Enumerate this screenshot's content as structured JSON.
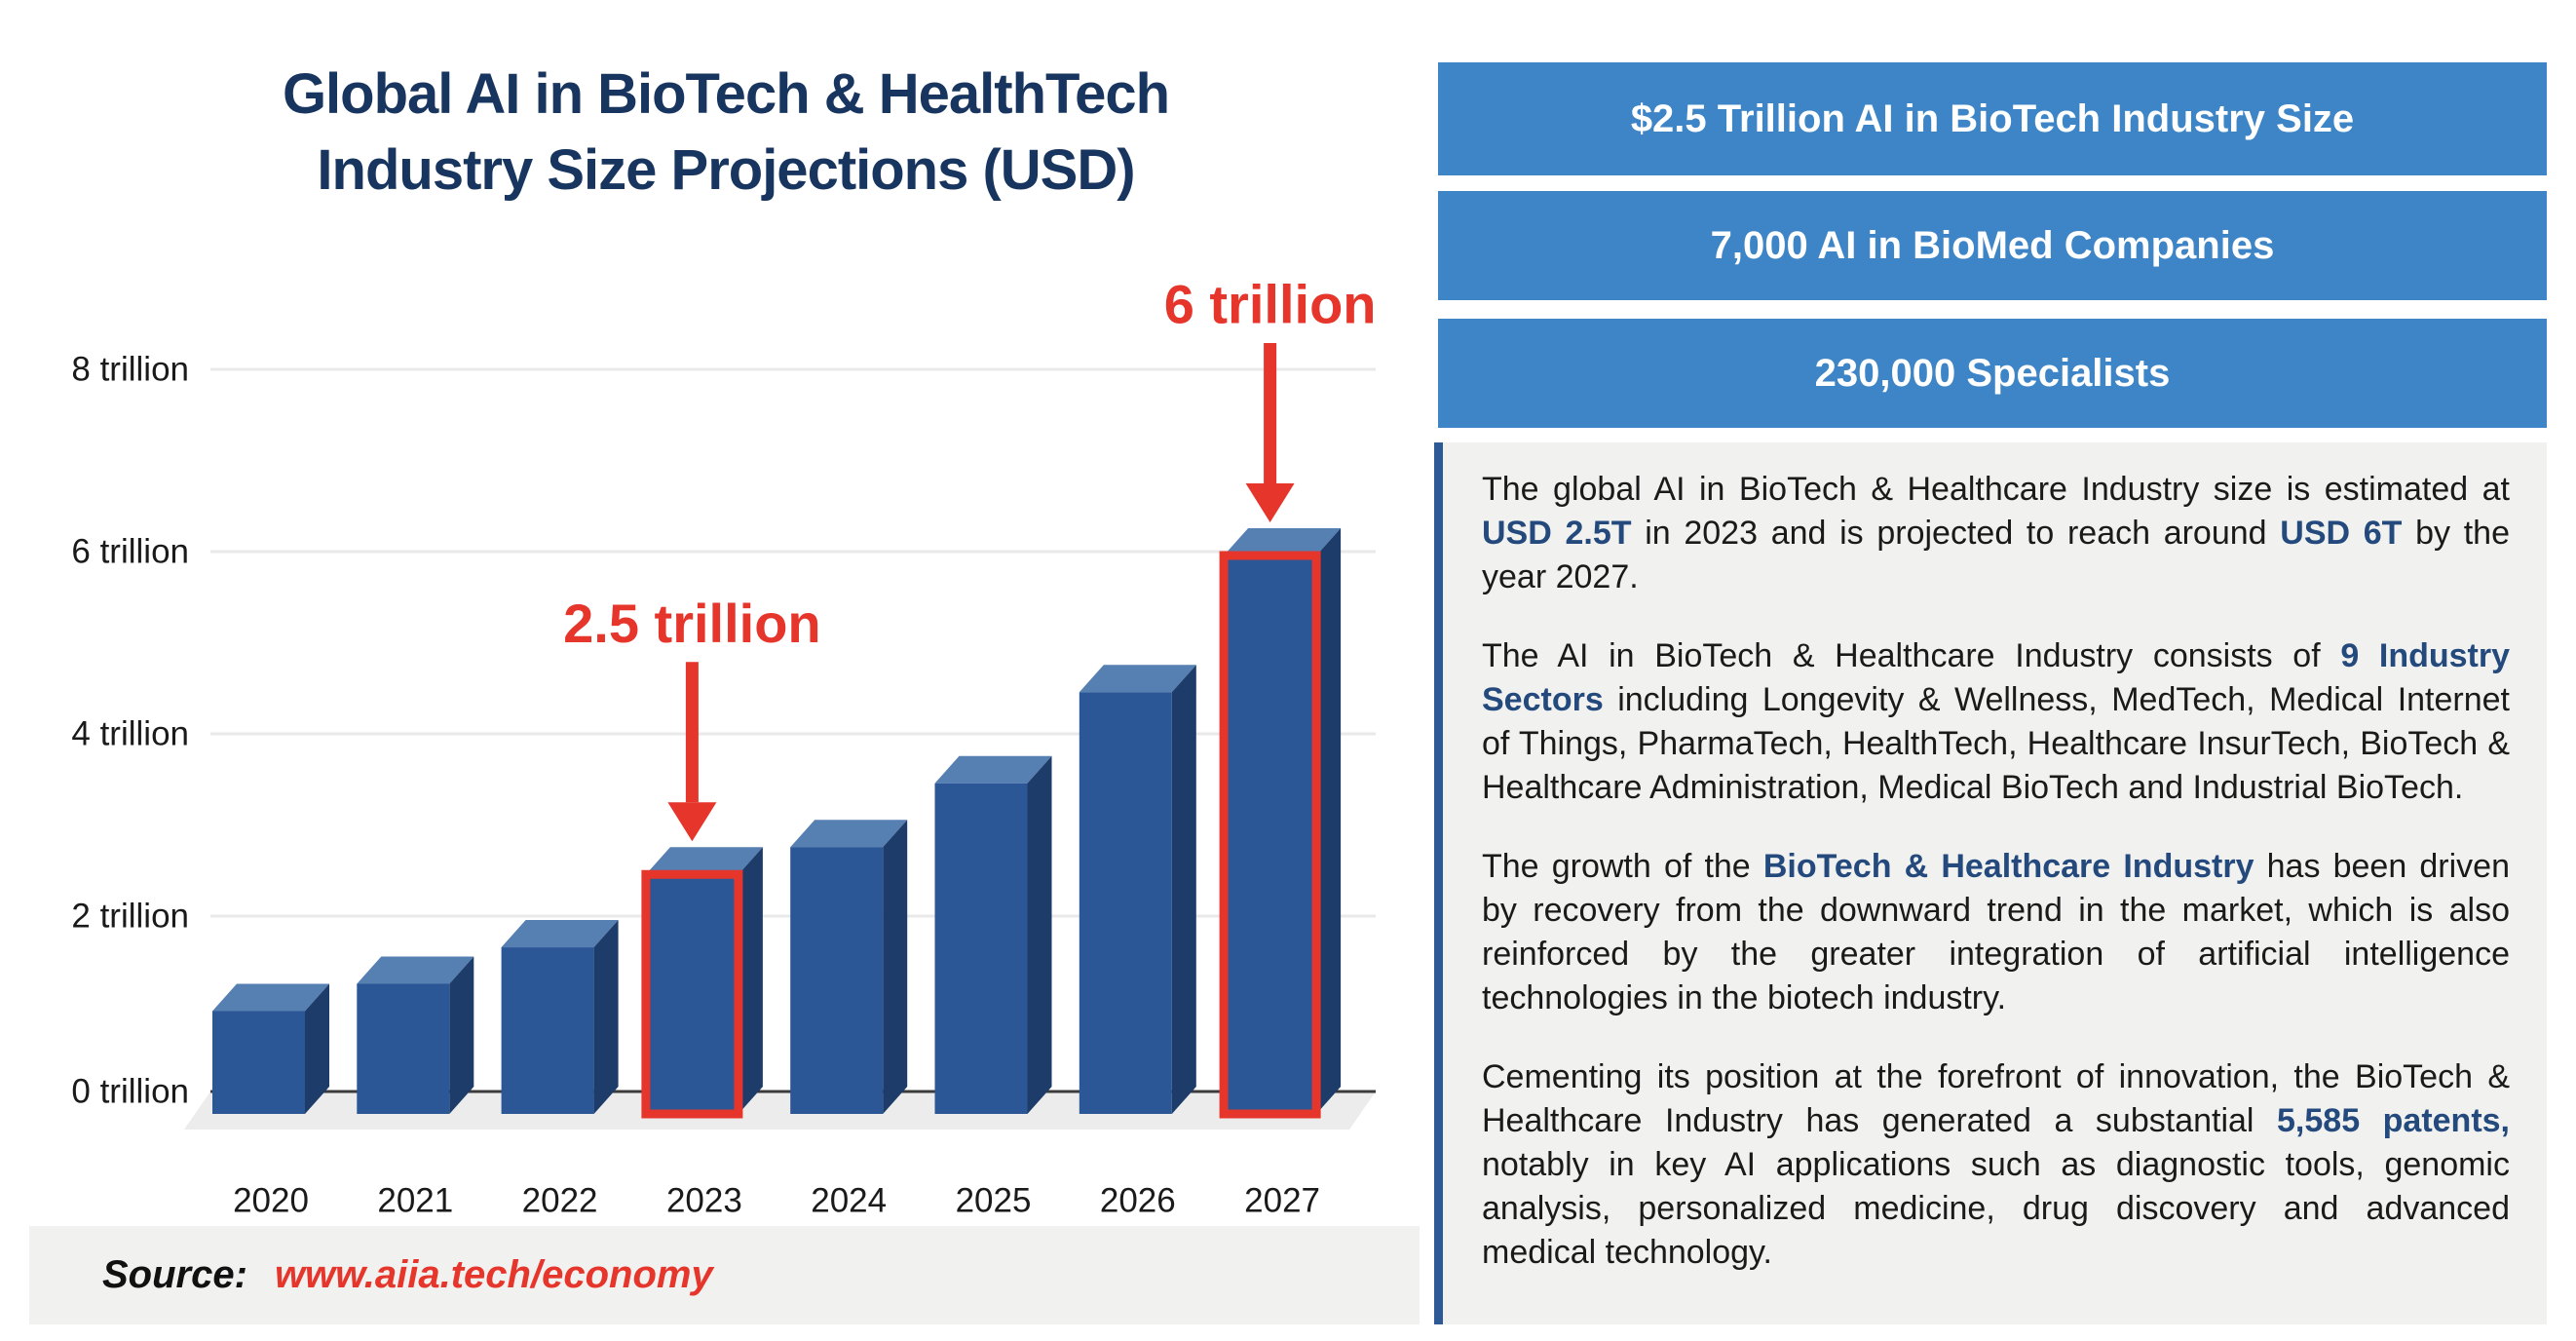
{
  "title": {
    "line1": "Global AI in BioTech & HealthTech",
    "line2": "Industry Size Projections (USD)"
  },
  "chart_data": {
    "type": "bar",
    "title": "Global AI in BioTech & HealthTech Industry Size Projections (USD)",
    "categories": [
      "2020",
      "2021",
      "2022",
      "2023",
      "2024",
      "2025",
      "2026",
      "2027"
    ],
    "values": [
      1.0,
      1.3,
      1.7,
      2.5,
      2.8,
      3.5,
      4.5,
      6.0
    ],
    "unit": "trillion USD",
    "xlabel": "",
    "ylabel": "",
    "ylim": [
      0,
      8
    ],
    "grid": true,
    "legend": "none",
    "style": "3d-bars",
    "y_ticks": [
      {
        "v": 0,
        "label": "0 trillion"
      },
      {
        "v": 2,
        "label": "2 trillion"
      },
      {
        "v": 4,
        "label": "4 trillion"
      },
      {
        "v": 6,
        "label": "6 trillion"
      },
      {
        "v": 8,
        "label": "8 trillion"
      }
    ],
    "annotations": [
      {
        "category": "2023",
        "label": "2.5 trillion",
        "value": 2.5,
        "highlight": "red-outline",
        "arrow": "down"
      },
      {
        "category": "2027",
        "label": "6 trillion",
        "value": 6.0,
        "highlight": "red-outline",
        "arrow": "down"
      }
    ]
  },
  "stat_banners": [
    {
      "label": "$2.5 Trillion AI in BioTech Industry Size"
    },
    {
      "label": "7,000 AI in BioMed Companies"
    },
    {
      "label": "230,000 Specialists"
    }
  ],
  "info_panel": {
    "paragraphs": [
      {
        "runs": [
          {
            "t": "The global AI in BioTech & Healthcare Industry size is estimated at "
          },
          {
            "t": "USD 2.5T",
            "b": true
          },
          {
            "t": " in 2023 and is projected to reach around "
          },
          {
            "t": "USD 6T",
            "b": true
          },
          {
            "t": " by the year 2027."
          }
        ]
      },
      {
        "runs": [
          {
            "t": "The AI in BioTech & Healthcare Industry consists of "
          },
          {
            "t": "9 Industry Sectors",
            "b": true
          },
          {
            "t": " including Longevity & Wellness, MedTech, Medical Internet of Things, PharmaTech, HealthTech, Healthcare InsurTech, BioTech & Healthcare Administration, Medical BioTech and Industrial BioTech."
          }
        ]
      },
      {
        "runs": [
          {
            "t": "The growth of the "
          },
          {
            "t": "BioTech & Healthcare Industry",
            "b": true
          },
          {
            "t": " has been driven by recovery from the downward trend in the market, which is also reinforced by the greater integration of artificial intelligence technologies in the biotech industry."
          }
        ]
      },
      {
        "runs": [
          {
            "t": "Cementing its position at the forefront of innovation, the BioTech & Healthcare Industry has generated a substantial "
          },
          {
            "t": "5,585 patents,",
            "b": true
          },
          {
            "t": " notably in key AI applications such as diagnostic tools, genomic analysis, personalized medicine, drug discovery and advanced medical technology."
          }
        ]
      }
    ]
  },
  "source": {
    "label": "Source:",
    "url": "www.aiia.tech/economy"
  },
  "colors": {
    "banner_blue": "#3d85c6",
    "title_navy": "#17355e",
    "bold_navy": "#24497c",
    "annotation_red": "#e6352b",
    "panel_gray": "#f1f1f0",
    "floor_gray": "#ececec",
    "grid_gray": "#e9e9e9",
    "bar_front": "#2b5797",
    "bar_top": "#567fb2",
    "bar_side": "#1d3c69",
    "divider_navy": "#2d5a94",
    "text_dark": "#1a1a1a"
  }
}
